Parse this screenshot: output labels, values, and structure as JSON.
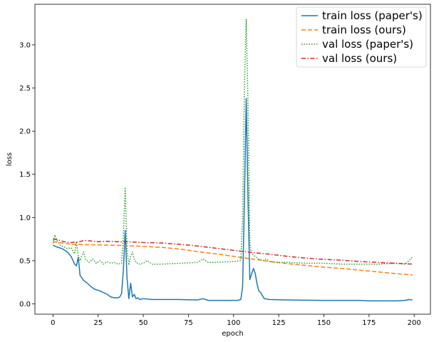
{
  "chart_data": {
    "type": "line",
    "xlabel": "epoch",
    "ylabel": "loss",
    "xlim": [
      -10,
      209
    ],
    "ylim": [
      -0.12,
      3.47
    ],
    "xticks": [
      0,
      25,
      50,
      75,
      100,
      125,
      150,
      175,
      200
    ],
    "yticks": [
      0.0,
      0.5,
      1.0,
      1.5,
      2.0,
      2.5,
      3.0
    ],
    "xtick_labels": [
      "0",
      "25",
      "50",
      "75",
      "100",
      "125",
      "150",
      "175",
      "200"
    ],
    "ytick_labels": [
      "0.0",
      "0.5",
      "1.0",
      "1.5",
      "2.0",
      "2.5",
      "3.0"
    ],
    "grid": false,
    "legend_position": "top-right",
    "series": [
      {
        "name": "train loss (paper's)",
        "color": "#1f77b4",
        "dash": "solid",
        "points": [
          [
            0,
            0.68
          ],
          [
            2,
            0.66
          ],
          [
            5,
            0.64
          ],
          [
            8,
            0.6
          ],
          [
            10,
            0.55
          ],
          [
            12,
            0.46
          ],
          [
            13,
            0.44
          ],
          [
            14,
            0.54
          ],
          [
            15,
            0.33
          ],
          [
            17,
            0.27
          ],
          [
            19,
            0.24
          ],
          [
            21,
            0.2
          ],
          [
            23,
            0.17
          ],
          [
            26,
            0.15
          ],
          [
            28,
            0.13
          ],
          [
            30,
            0.11
          ],
          [
            32,
            0.08
          ],
          [
            34,
            0.07
          ],
          [
            36,
            0.07
          ],
          [
            37,
            0.08
          ],
          [
            38,
            0.12
          ],
          [
            39,
            0.4
          ],
          [
            40,
            0.85
          ],
          [
            41,
            0.3
          ],
          [
            42,
            0.06
          ],
          [
            43,
            0.24
          ],
          [
            44,
            0.08
          ],
          [
            45,
            0.11
          ],
          [
            46,
            0.06
          ],
          [
            47,
            0.07
          ],
          [
            48,
            0.05
          ],
          [
            50,
            0.06
          ],
          [
            55,
            0.05
          ],
          [
            60,
            0.05
          ],
          [
            70,
            0.05
          ],
          [
            80,
            0.045
          ],
          [
            83,
            0.06
          ],
          [
            86,
            0.04
          ],
          [
            95,
            0.04
          ],
          [
            102,
            0.04
          ],
          [
            104,
            0.05
          ],
          [
            105,
            0.2
          ],
          [
            106,
            1.2
          ],
          [
            107,
            2.38
          ],
          [
            108,
            1.2
          ],
          [
            109,
            0.28
          ],
          [
            110,
            0.35
          ],
          [
            111,
            0.41
          ],
          [
            112,
            0.35
          ],
          [
            113,
            0.23
          ],
          [
            114,
            0.15
          ],
          [
            115,
            0.13
          ],
          [
            117,
            0.06
          ],
          [
            120,
            0.05
          ],
          [
            130,
            0.045
          ],
          [
            150,
            0.04
          ],
          [
            170,
            0.04
          ],
          [
            175,
            0.035
          ],
          [
            190,
            0.035
          ],
          [
            195,
            0.04
          ],
          [
            197,
            0.05
          ],
          [
            199,
            0.045
          ]
        ]
      },
      {
        "name": "train loss (ours)",
        "color": "#ff7f0e",
        "dash": "dashed",
        "points": [
          [
            0,
            0.72
          ],
          [
            10,
            0.69
          ],
          [
            20,
            0.685
          ],
          [
            30,
            0.68
          ],
          [
            40,
            0.675
          ],
          [
            50,
            0.665
          ],
          [
            60,
            0.655
          ],
          [
            70,
            0.635
          ],
          [
            80,
            0.605
          ],
          [
            90,
            0.58
          ],
          [
            100,
            0.55
          ],
          [
            110,
            0.52
          ],
          [
            120,
            0.49
          ],
          [
            130,
            0.465
          ],
          [
            140,
            0.445
          ],
          [
            150,
            0.425
          ],
          [
            160,
            0.41
          ],
          [
            170,
            0.39
          ],
          [
            180,
            0.37
          ],
          [
            190,
            0.35
          ],
          [
            199,
            0.335
          ]
        ]
      },
      {
        "name": "val loss (paper's)",
        "color": "#2ca02c",
        "dash": "dotted",
        "points": [
          [
            0,
            0.7
          ],
          [
            1,
            0.8
          ],
          [
            2,
            0.74
          ],
          [
            4,
            0.68
          ],
          [
            6,
            0.66
          ],
          [
            8,
            0.64
          ],
          [
            10,
            0.65
          ],
          [
            12,
            0.58
          ],
          [
            13,
            0.72
          ],
          [
            14,
            0.55
          ],
          [
            15,
            0.5
          ],
          [
            16,
            0.56
          ],
          [
            17,
            0.6
          ],
          [
            18,
            0.52
          ],
          [
            20,
            0.48
          ],
          [
            22,
            0.52
          ],
          [
            24,
            0.47
          ],
          [
            26,
            0.5
          ],
          [
            28,
            0.46
          ],
          [
            30,
            0.49
          ],
          [
            32,
            0.47
          ],
          [
            34,
            0.48
          ],
          [
            36,
            0.46
          ],
          [
            38,
            0.47
          ],
          [
            39,
            0.8
          ],
          [
            40,
            1.35
          ],
          [
            41,
            0.62
          ],
          [
            42,
            0.45
          ],
          [
            43,
            0.55
          ],
          [
            44,
            0.6
          ],
          [
            45,
            0.52
          ],
          [
            46,
            0.48
          ],
          [
            48,
            0.46
          ],
          [
            50,
            0.47
          ],
          [
            52,
            0.5
          ],
          [
            55,
            0.46
          ],
          [
            60,
            0.46
          ],
          [
            70,
            0.47
          ],
          [
            80,
            0.48
          ],
          [
            83,
            0.52
          ],
          [
            86,
            0.48
          ],
          [
            90,
            0.48
          ],
          [
            100,
            0.49
          ],
          [
            104,
            0.5
          ],
          [
            105,
            1.0
          ],
          [
            106,
            2.5
          ],
          [
            107,
            3.3
          ],
          [
            108,
            2.3
          ],
          [
            109,
            0.7
          ],
          [
            110,
            0.58
          ],
          [
            112,
            0.55
          ],
          [
            114,
            0.52
          ],
          [
            116,
            0.5
          ],
          [
            118,
            0.52
          ],
          [
            120,
            0.49
          ],
          [
            125,
            0.48
          ],
          [
            130,
            0.48
          ],
          [
            140,
            0.47
          ],
          [
            150,
            0.47
          ],
          [
            160,
            0.46
          ],
          [
            170,
            0.46
          ],
          [
            180,
            0.46
          ],
          [
            190,
            0.47
          ],
          [
            195,
            0.46
          ],
          [
            197,
            0.5
          ],
          [
            199,
            0.54
          ]
        ]
      },
      {
        "name": "val loss (ours)",
        "color": "#d62728",
        "dash": "dashdot",
        "points": [
          [
            0,
            0.75
          ],
          [
            3,
            0.74
          ],
          [
            6,
            0.72
          ],
          [
            10,
            0.71
          ],
          [
            15,
            0.72
          ],
          [
            17,
            0.735
          ],
          [
            20,
            0.73
          ],
          [
            25,
            0.72
          ],
          [
            30,
            0.725
          ],
          [
            35,
            0.72
          ],
          [
            40,
            0.72
          ],
          [
            50,
            0.71
          ],
          [
            60,
            0.705
          ],
          [
            70,
            0.69
          ],
          [
            80,
            0.67
          ],
          [
            90,
            0.645
          ],
          [
            100,
            0.62
          ],
          [
            110,
            0.595
          ],
          [
            120,
            0.575
          ],
          [
            130,
            0.55
          ],
          [
            140,
            0.53
          ],
          [
            150,
            0.515
          ],
          [
            160,
            0.505
          ],
          [
            170,
            0.49
          ],
          [
            180,
            0.48
          ],
          [
            190,
            0.47
          ],
          [
            199,
            0.46
          ]
        ]
      }
    ]
  }
}
